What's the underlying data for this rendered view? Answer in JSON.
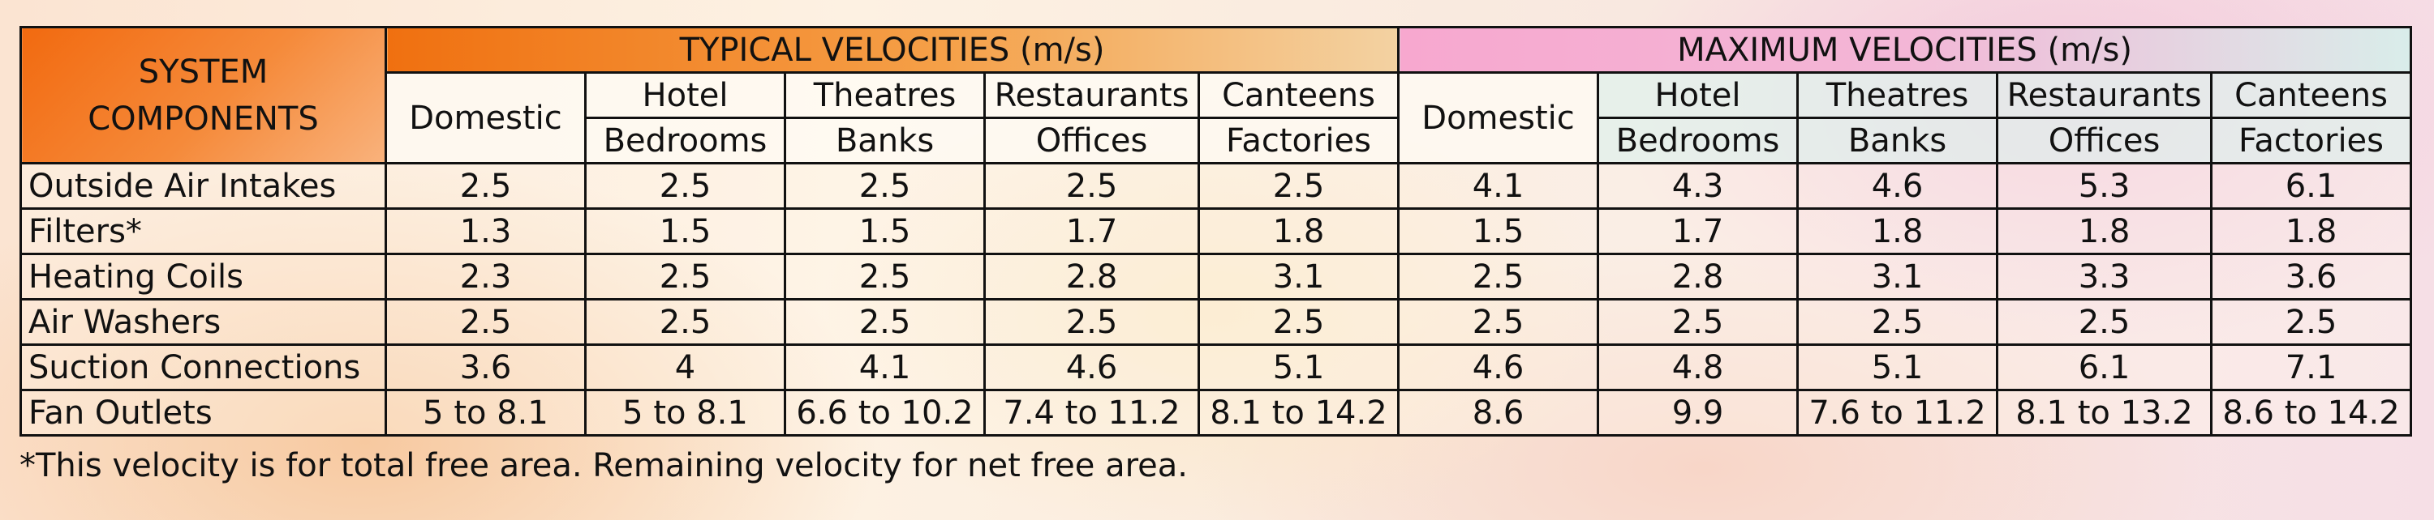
{
  "header": {
    "system_components": [
      "SYSTEM",
      "COMPONENTS"
    ],
    "typical_title": "TYPICAL VELOCITIES (m/s)",
    "maximum_title": "MAXIMUM VELOCITIES (m/s)",
    "columns": [
      {
        "line1": "Domestic",
        "line2": ""
      },
      {
        "line1": "Hotel",
        "line2": "Bedrooms"
      },
      {
        "line1": "Theatres",
        "line2": "Banks"
      },
      {
        "line1": "Restaurants",
        "line2": "Offices"
      },
      {
        "line1": "Canteens",
        "line2": "Factories"
      }
    ]
  },
  "rows": [
    {
      "component": "Outside Air Intakes",
      "typical": [
        "2.5",
        "2.5",
        "2.5",
        "2.5",
        "2.5"
      ],
      "maximum": [
        "4.1",
        "4.3",
        "4.6",
        "5.3",
        "6.1"
      ]
    },
    {
      "component": "Filters*",
      "typical": [
        "1.3",
        "1.5",
        "1.5",
        "1.7",
        "1.8"
      ],
      "maximum": [
        "1.5",
        "1.7",
        "1.8",
        "1.8",
        "1.8"
      ]
    },
    {
      "component": "Heating Coils",
      "typical": [
        "2.3",
        "2.5",
        "2.5",
        "2.8",
        "3.1"
      ],
      "maximum": [
        "2.5",
        "2.8",
        "3.1",
        "3.3",
        "3.6"
      ]
    },
    {
      "component": "Air Washers",
      "typical": [
        "2.5",
        "2.5",
        "2.5",
        "2.5",
        "2.5"
      ],
      "maximum": [
        "2.5",
        "2.5",
        "2.5",
        "2.5",
        "2.5"
      ]
    },
    {
      "component": "Suction Connections",
      "typical": [
        "3.6",
        "4",
        "4.1",
        "4.6",
        "5.1"
      ],
      "maximum": [
        "4.6",
        "4.8",
        "5.1",
        "6.1",
        "7.1"
      ]
    },
    {
      "component": "Fan Outlets",
      "typical": [
        "5 to  8.1",
        "5 to  8.1",
        "6.6 to 10.2",
        "7.4 to 11.2",
        "8.1 to 14.2"
      ],
      "maximum": [
        "8.6",
        "9.9",
        "7.6 to 11.2",
        "8.1 to 13.2",
        "8.6 to 14.2"
      ]
    }
  ],
  "footnote": "*This velocity is for total free area. Remaining velocity for net free area.",
  "colors": {
    "system_header": "#f26a10",
    "typical_header": "#f07010",
    "maximum_header": "#f7a8cf",
    "border": "#111111"
  }
}
